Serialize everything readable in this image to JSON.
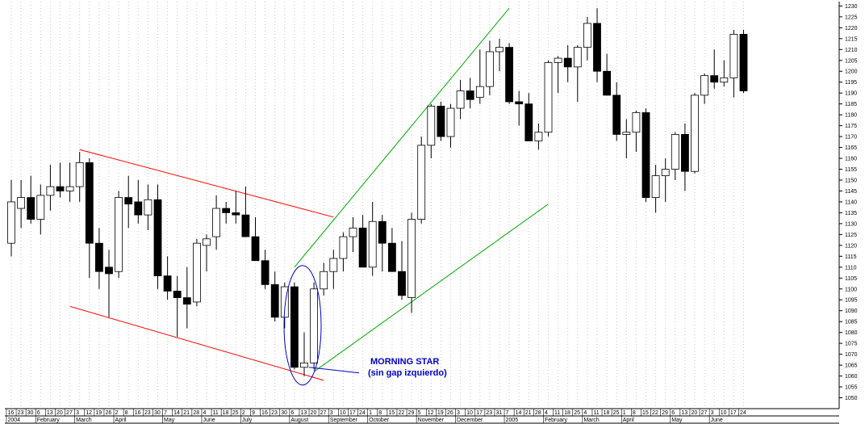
{
  "chart_data": {
    "type": "candlestick",
    "ylim": [
      1045,
      1232
    ],
    "y_ticks": [
      1050,
      1055,
      1060,
      1065,
      1070,
      1075,
      1080,
      1085,
      1090,
      1095,
      1100,
      1105,
      1110,
      1115,
      1120,
      1125,
      1130,
      1135,
      1140,
      1145,
      1150,
      1155,
      1160,
      1165,
      1170,
      1175,
      1180,
      1185,
      1190,
      1195,
      1200,
      1205,
      1210,
      1215,
      1220,
      1225,
      1230
    ],
    "week_labels": [
      "16",
      "23",
      "30",
      "6",
      "13",
      "20",
      "27",
      "3",
      "12",
      "19",
      "26",
      "2",
      "8",
      "16",
      "23",
      "30",
      "7",
      "14",
      "21",
      "28",
      "4",
      "11",
      "18",
      "25",
      "2",
      "9",
      "16",
      "23",
      "30",
      "6",
      "13",
      "20",
      "27",
      "3",
      "10",
      "17",
      "24",
      "1",
      "8",
      "15",
      "22",
      "29",
      "5",
      "12",
      "19",
      "26",
      "3",
      "10",
      "17",
      "23",
      "31",
      "7",
      "14",
      "21",
      "28",
      "4",
      "11",
      "18",
      "25",
      "4",
      "11",
      "18",
      "25",
      "1",
      "8",
      "15",
      "22",
      "29",
      "6",
      "13",
      "20",
      "27",
      "3",
      "10",
      "17",
      "24"
    ],
    "month_labels": [
      {
        "label": "2004",
        "week_index": 0
      },
      {
        "label": "February",
        "week_index": 3
      },
      {
        "label": "March",
        "week_index": 7
      },
      {
        "label": "April",
        "week_index": 11
      },
      {
        "label": "May",
        "week_index": 16
      },
      {
        "label": "June",
        "week_index": 20
      },
      {
        "label": "July",
        "week_index": 24
      },
      {
        "label": "August",
        "week_index": 29
      },
      {
        "label": "September",
        "week_index": 33
      },
      {
        "label": "October",
        "week_index": 37
      },
      {
        "label": "November",
        "week_index": 42
      },
      {
        "label": "December",
        "week_index": 46
      },
      {
        "label": "2005",
        "week_index": 51
      },
      {
        "label": "February",
        "week_index": 55
      },
      {
        "label": "March",
        "week_index": 59
      },
      {
        "label": "April",
        "week_index": 63
      },
      {
        "label": "May",
        "week_index": 68
      },
      {
        "label": "June",
        "week_index": 72
      }
    ],
    "candles": [
      {
        "o": 1121,
        "h": 1150,
        "l": 1115,
        "c": 1140
      },
      {
        "o": 1137,
        "h": 1150,
        "l": 1128,
        "c": 1142
      },
      {
        "o": 1142,
        "h": 1152,
        "l": 1130,
        "c": 1132
      },
      {
        "o": 1132,
        "h": 1148,
        "l": 1125,
        "c": 1143
      },
      {
        "o": 1143,
        "h": 1157,
        "l": 1136,
        "c": 1147
      },
      {
        "o": 1147,
        "h": 1158,
        "l": 1142,
        "c": 1145
      },
      {
        "o": 1145,
        "h": 1158,
        "l": 1140,
        "c": 1147
      },
      {
        "o": 1147,
        "h": 1163,
        "l": 1140,
        "c": 1158
      },
      {
        "o": 1158,
        "h": 1160,
        "l": 1105,
        "c": 1121
      },
      {
        "o": 1121,
        "h": 1128,
        "l": 1100,
        "c": 1108
      },
      {
        "o": 1110,
        "h": 1118,
        "l": 1087,
        "c": 1107
      },
      {
        "o": 1108,
        "h": 1145,
        "l": 1105,
        "c": 1142
      },
      {
        "o": 1142,
        "h": 1152,
        "l": 1128,
        "c": 1139
      },
      {
        "o": 1140,
        "h": 1150,
        "l": 1130,
        "c": 1134
      },
      {
        "o": 1134,
        "h": 1148,
        "l": 1127,
        "c": 1141
      },
      {
        "o": 1141,
        "h": 1148,
        "l": 1100,
        "c": 1106
      },
      {
        "o": 1106,
        "h": 1115,
        "l": 1095,
        "c": 1099
      },
      {
        "o": 1099,
        "h": 1106,
        "l": 1078,
        "c": 1096
      },
      {
        "o": 1096,
        "h": 1110,
        "l": 1082,
        "c": 1093
      },
      {
        "o": 1094,
        "h": 1123,
        "l": 1092,
        "c": 1121
      },
      {
        "o": 1120,
        "h": 1125,
        "l": 1108,
        "c": 1123
      },
      {
        "o": 1124,
        "h": 1143,
        "l": 1118,
        "c": 1137
      },
      {
        "o": 1137,
        "h": 1140,
        "l": 1130,
        "c": 1135
      },
      {
        "o": 1135,
        "h": 1145,
        "l": 1130,
        "c": 1134
      },
      {
        "o": 1134,
        "h": 1147,
        "l": 1125,
        "c": 1124
      },
      {
        "o": 1124,
        "h": 1133,
        "l": 1113,
        "c": 1113
      },
      {
        "o": 1113,
        "h": 1118,
        "l": 1100,
        "c": 1102
      },
      {
        "o": 1102,
        "h": 1108,
        "l": 1085,
        "c": 1087
      },
      {
        "o": 1087,
        "h": 1103,
        "l": 1082,
        "c": 1101
      },
      {
        "o": 1101,
        "h": 1103,
        "l": 1063,
        "c": 1064
      },
      {
        "o": 1064,
        "h": 1080,
        "l": 1060,
        "c": 1066
      },
      {
        "o": 1066,
        "h": 1103,
        "l": 1063,
        "c": 1100
      },
      {
        "o": 1100,
        "h": 1112,
        "l": 1097,
        "c": 1108
      },
      {
        "o": 1108,
        "h": 1118,
        "l": 1100,
        "c": 1114
      },
      {
        "o": 1114,
        "h": 1126,
        "l": 1108,
        "c": 1124
      },
      {
        "o": 1124,
        "h": 1133,
        "l": 1117,
        "c": 1128
      },
      {
        "o": 1128,
        "h": 1134,
        "l": 1110,
        "c": 1110
      },
      {
        "o": 1110,
        "h": 1140,
        "l": 1106,
        "c": 1131
      },
      {
        "o": 1131,
        "h": 1134,
        "l": 1108,
        "c": 1121
      },
      {
        "o": 1121,
        "h": 1128,
        "l": 1108,
        "c": 1108
      },
      {
        "o": 1108,
        "h": 1122,
        "l": 1095,
        "c": 1097
      },
      {
        "o": 1096,
        "h": 1135,
        "l": 1089,
        "c": 1132
      },
      {
        "o": 1132,
        "h": 1170,
        "l": 1130,
        "c": 1166
      },
      {
        "o": 1166,
        "h": 1185,
        "l": 1160,
        "c": 1184
      },
      {
        "o": 1184,
        "h": 1186,
        "l": 1168,
        "c": 1170
      },
      {
        "o": 1170,
        "h": 1185,
        "l": 1165,
        "c": 1183
      },
      {
        "o": 1183,
        "h": 1196,
        "l": 1178,
        "c": 1191
      },
      {
        "o": 1191,
        "h": 1197,
        "l": 1183,
        "c": 1187
      },
      {
        "o": 1188,
        "h": 1210,
        "l": 1185,
        "c": 1193
      },
      {
        "o": 1193,
        "h": 1214,
        "l": 1189,
        "c": 1209
      },
      {
        "o": 1209,
        "h": 1215,
        "l": 1200,
        "c": 1211
      },
      {
        "o": 1211,
        "h": 1213,
        "l": 1185,
        "c": 1186
      },
      {
        "o": 1186,
        "h": 1191,
        "l": 1175,
        "c": 1185
      },
      {
        "o": 1185,
        "h": 1190,
        "l": 1168,
        "c": 1168
      },
      {
        "o": 1168,
        "h": 1176,
        "l": 1164,
        "c": 1172
      },
      {
        "o": 1172,
        "h": 1205,
        "l": 1170,
        "c": 1204
      },
      {
        "o": 1204,
        "h": 1207,
        "l": 1190,
        "c": 1206
      },
      {
        "o": 1206,
        "h": 1212,
        "l": 1195,
        "c": 1202
      },
      {
        "o": 1202,
        "h": 1212,
        "l": 1186,
        "c": 1211
      },
      {
        "o": 1211,
        "h": 1225,
        "l": 1205,
        "c": 1222
      },
      {
        "o": 1222,
        "h": 1229,
        "l": 1195,
        "c": 1200
      },
      {
        "o": 1200,
        "h": 1208,
        "l": 1190,
        "c": 1189
      },
      {
        "o": 1189,
        "h": 1195,
        "l": 1168,
        "c": 1171
      },
      {
        "o": 1171,
        "h": 1178,
        "l": 1160,
        "c": 1172
      },
      {
        "o": 1172,
        "h": 1182,
        "l": 1163,
        "c": 1181
      },
      {
        "o": 1181,
        "h": 1183,
        "l": 1140,
        "c": 1142
      },
      {
        "o": 1142,
        "h": 1157,
        "l": 1135,
        "c": 1152
      },
      {
        "o": 1152,
        "h": 1160,
        "l": 1140,
        "c": 1155
      },
      {
        "o": 1155,
        "h": 1172,
        "l": 1150,
        "c": 1171
      },
      {
        "o": 1171,
        "h": 1176,
        "l": 1145,
        "c": 1154
      },
      {
        "o": 1154,
        "h": 1190,
        "l": 1153,
        "c": 1189
      },
      {
        "o": 1189,
        "h": 1199,
        "l": 1185,
        "c": 1198
      },
      {
        "o": 1198,
        "h": 1210,
        "l": 1192,
        "c": 1195
      },
      {
        "o": 1195,
        "h": 1205,
        "l": 1193,
        "c": 1197
      },
      {
        "o": 1197,
        "h": 1219,
        "l": 1188,
        "c": 1217
      },
      {
        "o": 1217,
        "h": 1219,
        "l": 1190,
        "c": 1191
      }
    ],
    "trend_lines": [
      {
        "name": "upper-red-resistance",
        "color": "#ff0000",
        "from": {
          "week": 7,
          "price": 1164
        },
        "to": {
          "week": 33,
          "price": 1133
        }
      },
      {
        "name": "lower-red-support",
        "color": "#ff0000",
        "from": {
          "week": 6,
          "price": 1092
        },
        "to": {
          "week": 32,
          "price": 1058
        }
      },
      {
        "name": "upper-green-channel",
        "color": "#00aa00",
        "from": {
          "week": 29,
          "price": 1110
        },
        "to": {
          "week": 51,
          "price": 1229
        }
      },
      {
        "name": "lower-green-channel",
        "color": "#00aa00",
        "from": {
          "week": 31,
          "price": 1062
        },
        "to": {
          "week": 55,
          "price": 1139
        }
      }
    ],
    "annotation": {
      "line1": "MORNING STAR",
      "line2": "(sin gap izquierdo)",
      "color": "#0000cc",
      "target_week": 30,
      "target_price": 1064
    },
    "colors": {
      "bull_body": "#ffffff",
      "bear_body": "#000000",
      "grid": "#c8c8c8"
    },
    "grid": true
  }
}
